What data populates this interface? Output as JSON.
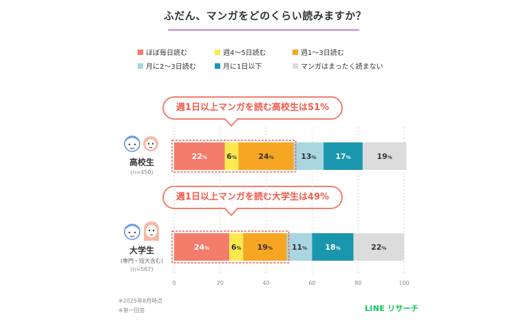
{
  "title": "ふだん、マンガをどのくらい読みますか？",
  "legend": [
    {
      "label": "ほぼ毎日読む",
      "color": "#f47c6b"
    },
    {
      "label": "週4～5日読む",
      "color": "#fce94f"
    },
    {
      "label": "週1～3日読む",
      "color": "#f6a623"
    },
    {
      "label": "月に2～3日読む",
      "color": "#a9d6e0"
    },
    {
      "label": "月に1日以下",
      "color": "#1a97ae"
    },
    {
      "label": "マンガはまったく読まない",
      "color": "#dcdcdc"
    }
  ],
  "callouts": {
    "high_school": "週1日以上マンガを読む高校生は51%",
    "university": "週1日以上マンガを読む大学生は49%"
  },
  "groups": {
    "high_school": {
      "name": "高校生",
      "n": "(n=450)"
    },
    "university": {
      "name": "大学生",
      "sub": "(専門・短大含む)",
      "n": "(n=567)"
    }
  },
  "chart_data": {
    "type": "bar",
    "orientation": "horizontal",
    "stacked": true,
    "categories": [
      "高校生",
      "大学生"
    ],
    "series": [
      {
        "name": "ほぼ毎日読む",
        "values": [
          22,
          24
        ]
      },
      {
        "name": "週4～5日読む",
        "values": [
          6,
          6
        ]
      },
      {
        "name": "週1～3日読む",
        "values": [
          24,
          19
        ]
      },
      {
        "name": "月に2～3日読む",
        "values": [
          13,
          11
        ]
      },
      {
        "name": "月に1日以下",
        "values": [
          17,
          18
        ]
      },
      {
        "name": "マンガはまったく読まない",
        "values": [
          19,
          22
        ]
      }
    ],
    "xlim": [
      0,
      100
    ],
    "xticks": [
      "0",
      "20",
      "40",
      "60",
      "80",
      "100"
    ],
    "value_suffix": "%",
    "grid": true
  },
  "footnotes": [
    "※2025年8月時点",
    "※単一回答"
  ],
  "brand": "LINE リサーチ"
}
